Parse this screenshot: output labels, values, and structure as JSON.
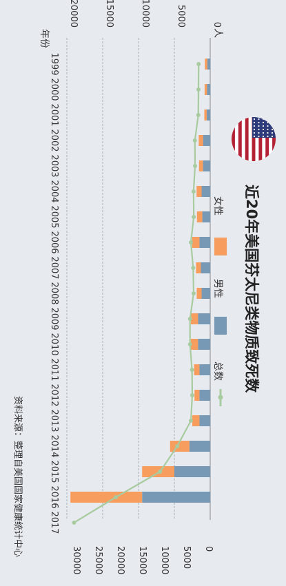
{
  "chart_data": {
    "type": "bar",
    "orientation": "rotated-90-clockwise",
    "title": "近20年美国芬太尼类物质致死数",
    "y_unit_label": "人",
    "x_axis_label": "年份",
    "source": "资料来源：整理自美国国家健康统计中心",
    "categories": [
      "1999",
      "2000",
      "2001",
      "2002",
      "2003",
      "2004",
      "2005",
      "2006",
      "2007",
      "2008",
      "2009",
      "2010",
      "2011",
      "2012",
      "2013",
      "2014",
      "2015",
      "2016",
      "2017"
    ],
    "series": [
      {
        "name": "女性",
        "type": "stacked-bar",
        "color": "#f79d5e",
        "values": [
          350,
          330,
          340,
          600,
          560,
          700,
          750,
          1000,
          680,
          680,
          1000,
          1000,
          750,
          690,
          1000,
          2700,
          4500,
          10000,
          null
        ]
      },
      {
        "name": "男性",
        "type": "stacked-bar",
        "color": "#7799b5",
        "values": [
          400,
          450,
          480,
          1000,
          1000,
          1200,
          1100,
          1500,
          1300,
          1200,
          1700,
          1700,
          1500,
          1500,
          1500,
          2900,
          5000,
          9500,
          null
        ]
      },
      {
        "name": "总数",
        "type": "line",
        "color": "#a9cba0",
        "values": [
          750,
          780,
          820,
          1600,
          1560,
          1900,
          1850,
          2500,
          1980,
          1880,
          2700,
          2700,
          2250,
          2190,
          2500,
          5600,
          9500,
          19500,
          29000
        ]
      }
    ],
    "ylim": [
      0,
      20000
    ],
    "yticks": [
      "0",
      "5000",
      "10000",
      "15000",
      "20000"
    ],
    "line_ylim": [
      0,
      30000
    ],
    "line_yticks": [
      "0",
      "5000",
      "10000",
      "15000",
      "20000",
      "25000",
      "30000"
    ],
    "grid": true,
    "legend_position": "right"
  },
  "flag_icon": "us-flag-icon",
  "colors": {
    "background": "#e7eaef",
    "grid": "#9aa3ad",
    "text": "#333333"
  }
}
